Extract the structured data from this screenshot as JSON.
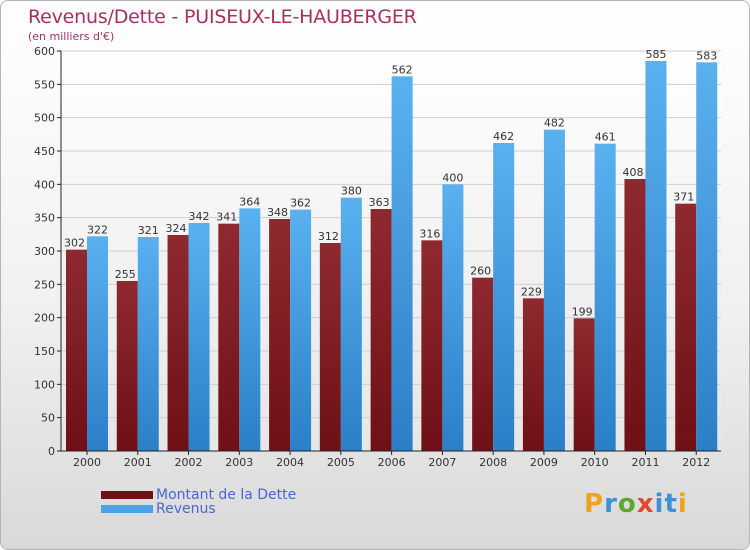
{
  "title": "Revenus/Dette - PUISEUX-LE-HAUBERGER",
  "subtitle": "(en milliers d'€)",
  "colors": {
    "dette": "#6e1016",
    "revenus": "#4aa3e6",
    "axis": "#222222",
    "title": "#a8305e",
    "legend_text": "#4a66d6"
  },
  "legend": [
    {
      "name": "Montant de la Dette",
      "color": "#6e1016"
    },
    {
      "name": "Revenus",
      "color": "#4aa3e6"
    }
  ],
  "logo": {
    "text": "Proxiti",
    "letters": [
      "P",
      "r",
      "o",
      "x",
      "i",
      "t",
      "i"
    ],
    "letter_colors": [
      "#f0a21a",
      "#3d8fd6",
      "#5aa832",
      "#e0492a",
      "#3d8fd6",
      "#3d8fd6",
      "#f0a21a"
    ]
  },
  "chart_data": {
    "type": "bar",
    "title": "Revenus/Dette - PUISEUX-LE-HAUBERGER",
    "subtitle": "(en milliers d'€)",
    "xlabel": "",
    "ylabel": "",
    "ylim": [
      0,
      600
    ],
    "yticks": [
      0,
      50,
      100,
      150,
      200,
      250,
      300,
      350,
      400,
      450,
      500,
      550,
      600
    ],
    "grid": true,
    "legend_position": "bottom-left",
    "categories": [
      "2000",
      "2001",
      "2002",
      "2003",
      "2004",
      "2005",
      "2006",
      "2007",
      "2008",
      "2009",
      "2010",
      "2011",
      "2012"
    ],
    "series": [
      {
        "name": "Montant de la Dette",
        "values": [
          302,
          255,
          324,
          341,
          348,
          312,
          363,
          316,
          260,
          229,
          199,
          408,
          371
        ]
      },
      {
        "name": "Revenus",
        "values": [
          322,
          321,
          342,
          364,
          362,
          380,
          562,
          400,
          462,
          482,
          461,
          585,
          583
        ]
      }
    ]
  }
}
